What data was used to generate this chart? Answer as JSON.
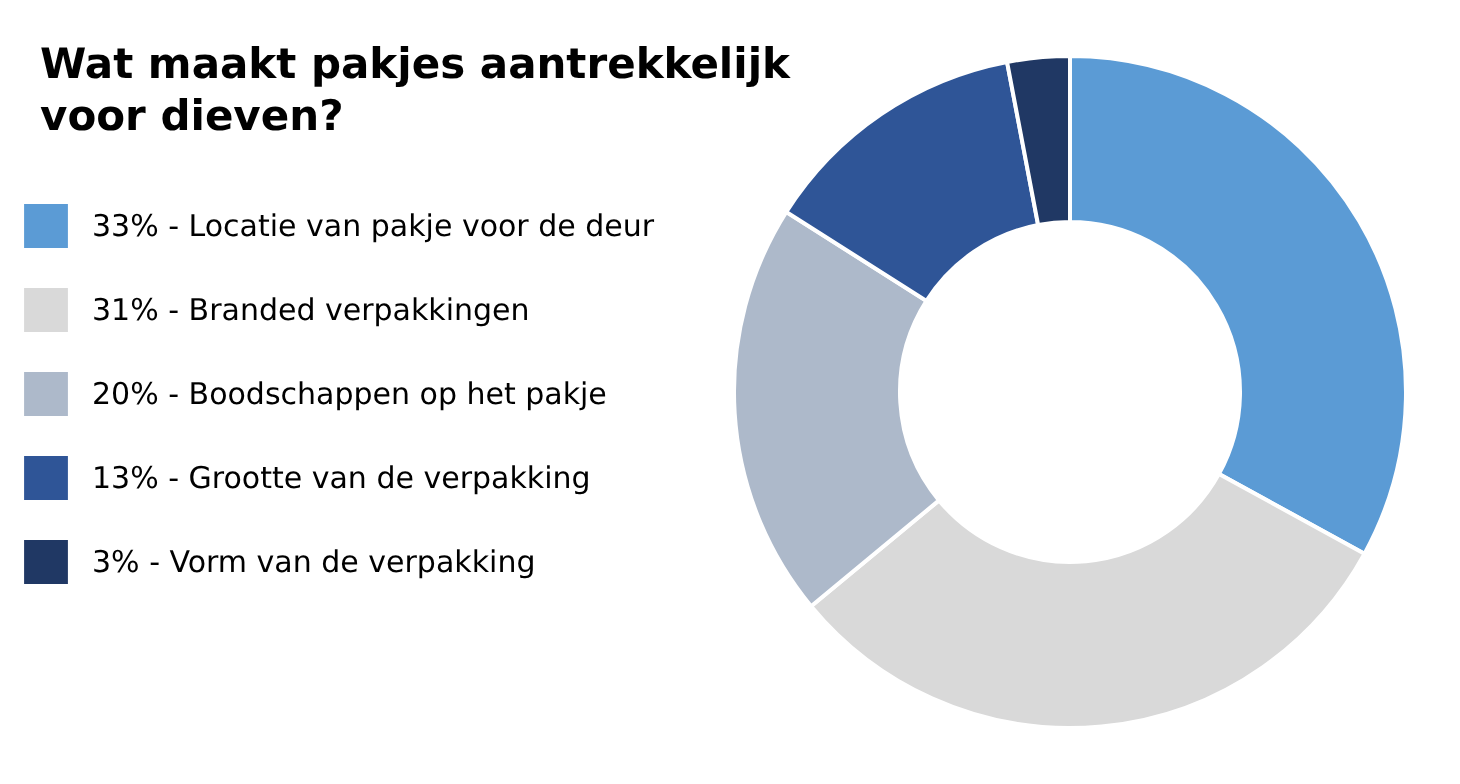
{
  "chart_data": {
    "type": "donut",
    "title": "Wat maakt pakjes aantrekkelijk voor dieven?",
    "categories": [
      "Locatie van pakje voor de deur",
      "Branded verpakkingen",
      "Boodschappen op het pakje",
      "Grootte van de verpakking",
      "Vorm van de verpakking"
    ],
    "values": [
      33,
      31,
      20,
      13,
      3
    ],
    "value_labels": [
      "33%",
      "31%",
      "20%",
      "13%",
      "3%"
    ],
    "colors": [
      "#5b9bd5",
      "#d9d9d9",
      "#adb9ca",
      "#2f5597",
      "#203864"
    ],
    "legend": "left"
  }
}
